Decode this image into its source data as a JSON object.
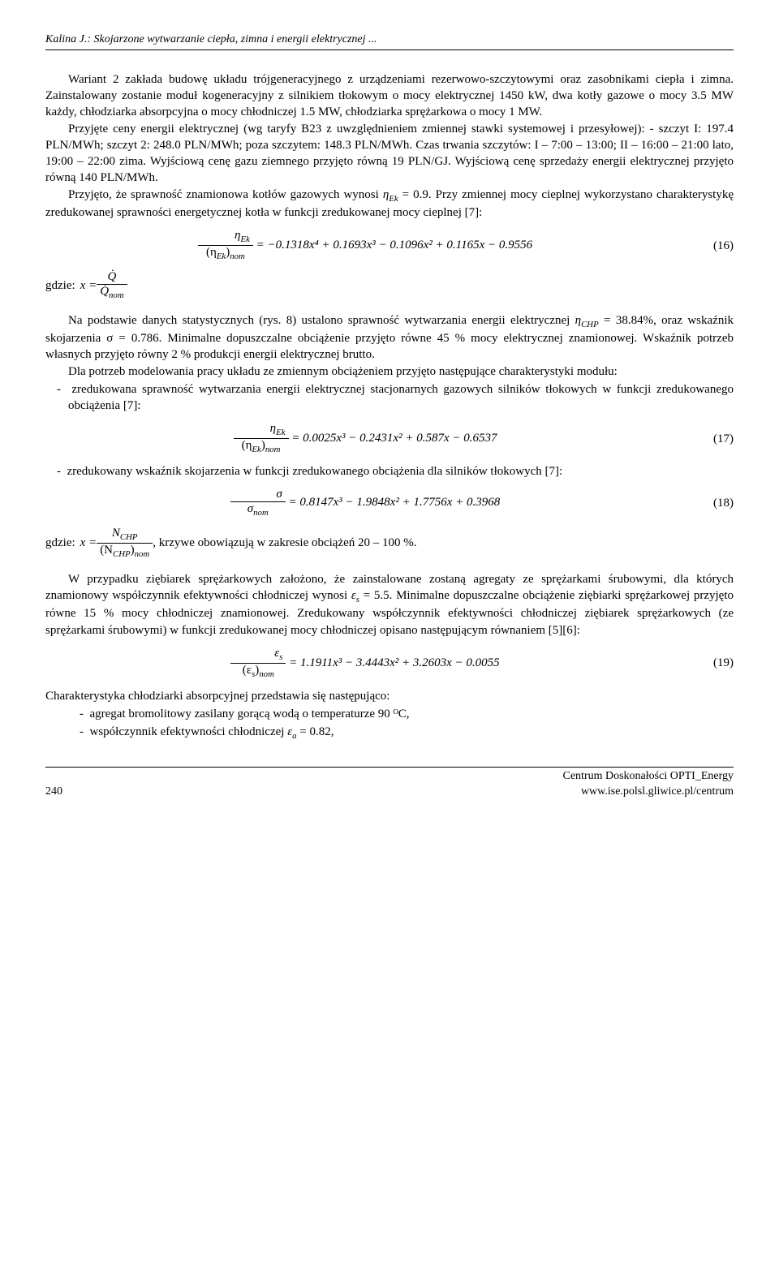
{
  "header": {
    "running": "Kalina J.: Skojarzone wytwarzanie ciepła, zimna i energii elektrycznej ..."
  },
  "para1": "Wariant 2 zakłada budowę układu trójgeneracyjnego z urządzeniami rezerwowo-szczytowymi oraz zasobnikami ciepła i zimna. Zainstalowany zostanie moduł kogeneracyjny z silnikiem tłokowym o mocy elektrycznej 1450 kW, dwa kotły gazowe o mocy 3.5 MW każdy, chłodziarka absorpcyjna o mocy chłodniczej 1.5 MW, chłodziarka sprężarkowa o mocy 1 MW.",
  "para2": "Przyjęte ceny energii elektrycznej (wg taryfy B23 z uwzględnieniem zmiennej stawki systemowej i przesyłowej): - szczyt I: 197.4 PLN/MWh; szczyt 2: 248.0 PLN/MWh; poza szczytem: 148.3 PLN/MWh. Czas trwania szczytów: I – 7:00 – 13:00; II – 16:00 – 21:00 lato, 19:00 – 22:00 zima. Wyjściową cenę gazu ziemnego przyjęto równą 19 PLN/GJ. Wyjściową cenę sprzedaży energii elektrycznej przyjęto równą 140 PLN/MWh.",
  "para3_a": "Przyjęto, że sprawność znamionowa kotłów gazowych wynosi ",
  "para3_eta": "η",
  "para3_sub": "Ek",
  "para3_b": " = 0.9. Przy zmiennej mocy cieplnej wykorzystano charakterystykę zredukowanej sprawności energetycznej kotła w funkcji zredukowanej mocy cieplnej [7]:",
  "eq16": {
    "lhs_top": "η",
    "lhs_top_sub": "Ek",
    "lhs_bot_pre": "(η",
    "lhs_bot_sub": "Ek",
    "lhs_bot_post": ")",
    "lhs_bot_nom": "nom",
    "rhs": " = −0.1318x⁴ + 0.1693x³ − 0.1096x² + 0.1165x − 0.9556",
    "num": "(16)"
  },
  "gdzie1": {
    "label": "gdzie: ",
    "lhs": "x = ",
    "top": "Q̇",
    "bot": "Q̇",
    "bot_sub": "nom"
  },
  "para4_a": "Na podstawie danych statystycznych (rys. 8) ustalono sprawność wytwarzania energii elektrycznej ",
  "para4_eta": "η",
  "para4_sub": "CHP",
  "para4_b": " = 38.84%, oraz wskaźnik skojarzenia σ = 0.786. Minimalne dopuszczalne obciążenie przyjęto równe 45 % mocy elektrycznej znamionowej. Wskaźnik potrzeb własnych przyjęto równy 2 % produkcji energii elektrycznej brutto.",
  "para5": "Dla potrzeb modelowania pracy układu ze zmiennym obciążeniem przyjęto następujące charakterystyki modułu:",
  "bullet1": "zredukowana sprawność wytwarzania energii elektrycznej stacjonarnych gazowych silników tłokowych w funkcji zredukowanego obciążenia [7]:",
  "eq17": {
    "rhs": " = 0.0025x³ − 0.2431x² + 0.587x − 0.6537",
    "num": "(17)"
  },
  "bullet2": "zredukowany wskaźnik skojarzenia w funkcji zredukowanego obciążenia dla silników tłokowych [7]:",
  "eq18": {
    "top": "σ",
    "bot": "σ",
    "bot_sub": "nom",
    "rhs": " = 0.8147x³ − 1.9848x² + 1.7756x + 0.3968",
    "num": "(18)"
  },
  "gdzie2": {
    "label": "gdzie: ",
    "lhs": "x = ",
    "top": "N",
    "top_sub": "CHP",
    "bot_pre": "(N",
    "bot_sub": "CHP",
    "bot_post": ")",
    "bot_nom": "nom",
    "tail": " , krzywe obowiązują w zakresie obciążeń 20 – 100 %."
  },
  "para6_a": "W przypadku ziębiarek sprężarkowych założono, że zainstalowane zostaną agregaty ze sprężarkami śrubowymi, dla których znamionowy współczynnik efektywności chłodniczej wynosi ",
  "para6_eps": "ε",
  "para6_sub": "s",
  "para6_b": " = 5.5. Minimalne dopuszczalne obciążenie ziębiarki sprężarkowej przyjęto równe 15 % mocy chłodniczej znamionowej. Zredukowany współczynnik efektywności chłodniczej ziębiarek sprężarkowych (ze sprężarkami śrubowymi) w funkcji zredukowanej mocy chłodniczej opisano następującym równaniem [5][6]:",
  "eq19": {
    "top": "ε",
    "top_sub": "s",
    "bot_pre": "(ε",
    "bot_sub": "s",
    "bot_post": ")",
    "bot_nom": "nom",
    "rhs": " = 1.1911x³ − 3.4443x² + 3.2603x − 0.0055",
    "num": "(19)"
  },
  "para7": "Charakterystyka chłodziarki absorpcyjnej przedstawia się następująco:",
  "bullet3": "agregat bromolitowy zasilany gorącą wodą o temperaturze 90 ᴼC,",
  "bullet4_a": "współczynnik efektywności chłodniczej ",
  "bullet4_eps": "ε",
  "bullet4_sub": "a",
  "bullet4_b": " = 0.82,",
  "footer": {
    "page": "240",
    "r1": "Centrum Doskonałości OPTI_Energy",
    "r2": "www.ise.polsl.gliwice.pl/centrum"
  }
}
